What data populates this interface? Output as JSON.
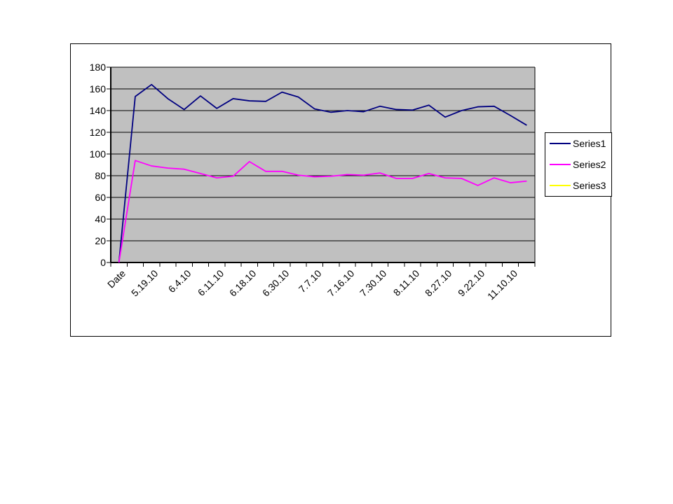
{
  "chart_data": {
    "type": "line",
    "title": "",
    "ylim": [
      0,
      180
    ],
    "y_ticks": [
      0,
      20,
      40,
      60,
      80,
      100,
      120,
      140,
      160,
      180
    ],
    "num_points": 26,
    "x_tick_labels": [
      "Date",
      "5.19.10",
      "6.4.10",
      "6.11.10",
      "6.18.10",
      "6.30.10",
      "7.7.10",
      "7.16.10",
      "7.30.10",
      "8.11.10",
      "8.27.10",
      "9.22.10",
      "11.10.10"
    ],
    "x_label_every_n_points": 2,
    "grid": true,
    "legend_position": "right",
    "plot_background": "#c0c0c0",
    "gridline_color": "#000000",
    "series": [
      {
        "name": "Series1",
        "color": "#000080",
        "values": [
          0,
          153,
          164,
          151,
          141,
          153.5,
          142,
          151,
          149,
          148.5,
          157,
          152.5,
          141.5,
          138.5,
          140,
          139,
          144,
          141,
          140.5,
          145,
          134,
          140,
          143.5,
          144,
          135.5,
          126.5
        ]
      },
      {
        "name": "Series2",
        "color": "#ff00ff",
        "values": [
          0,
          94,
          89,
          87,
          86,
          82,
          78,
          79.5,
          93,
          84,
          84,
          80.5,
          79,
          79.5,
          81,
          80.5,
          82.5,
          77.5,
          77.5,
          82,
          78,
          77.5,
          71,
          78,
          73.5,
          75
        ]
      },
      {
        "name": "Series3",
        "color": "#ffff00",
        "values": []
      }
    ]
  }
}
